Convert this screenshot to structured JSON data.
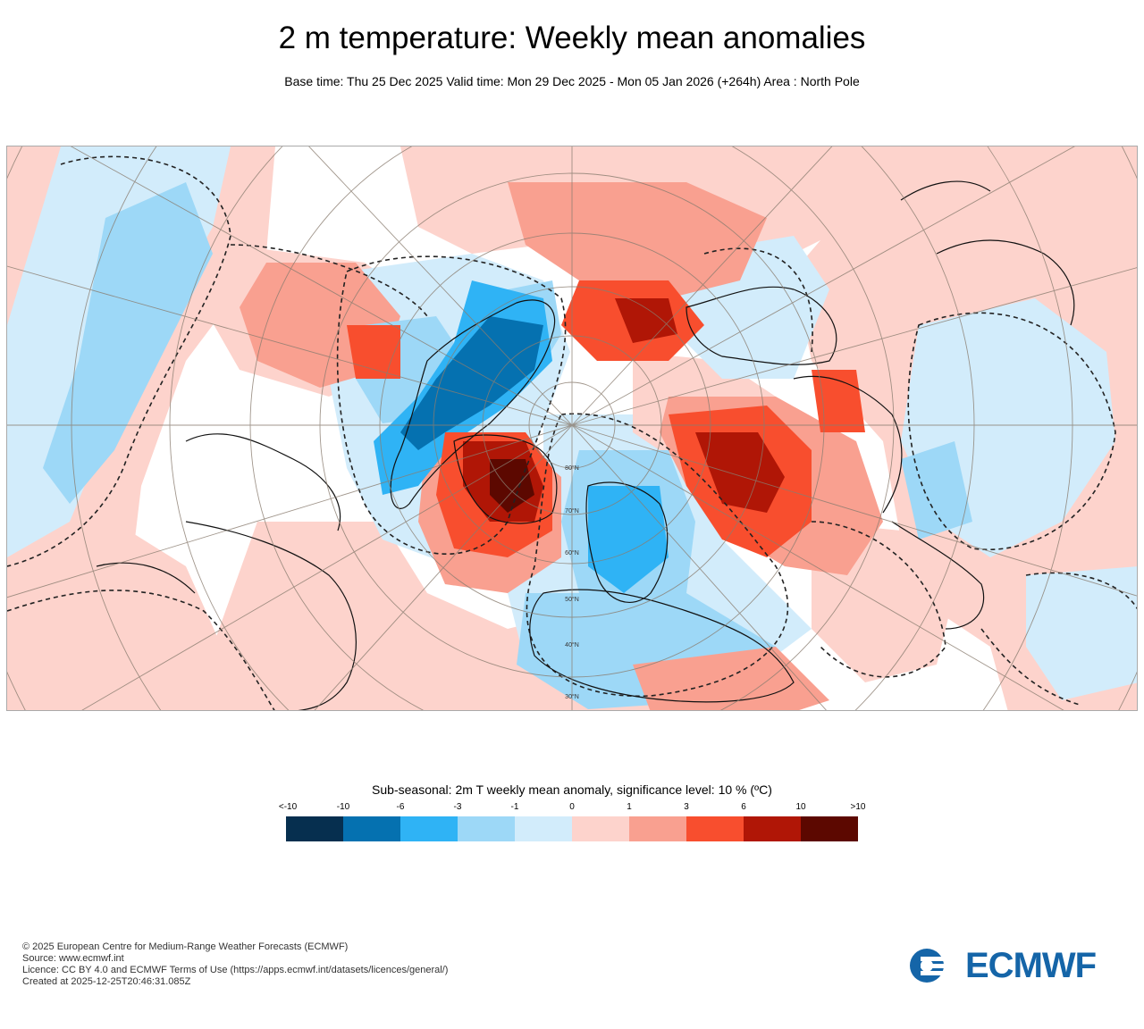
{
  "title": "2 m temperature: Weekly mean anomalies",
  "subtitle": "Base time: Thu 25 Dec 2025 Valid time: Mon 29 Dec 2025 - Mon 05 Jan 2026 (+264h) Area : North Pole",
  "map": {
    "projection": "north-polar-stereographic",
    "latitude_labels": [
      "30°N",
      "40°N",
      "50°N",
      "60°N",
      "70°N",
      "80°N"
    ]
  },
  "legend": {
    "title": "Sub-seasonal: 2m T weekly mean anomaly, significance level: 10 % (ºC)",
    "ticks": [
      "<-10",
      "-10",
      "-6",
      "-3",
      "-1",
      "0",
      "1",
      "3",
      "6",
      "10",
      ">10"
    ],
    "colors": [
      "#062f4f",
      "#0571b0",
      "#2fb3f5",
      "#9dd8f7",
      "#d2ecfb",
      "#fdd3cc",
      "#f9a090",
      "#f84e2e",
      "#b01606",
      "#5c0800"
    ]
  },
  "credits": [
    "© 2025 European Centre for Medium-Range Weather Forecasts (ECMWF)",
    "Source: www.ecmwf.int",
    "Licence: CC BY 4.0 and ECMWF Terms of Use (https://apps.ecmwf.int/datasets/licences/general/)",
    "Created at 2025-12-25T20:46:31.085Z"
  ],
  "logo": {
    "text": "ECMWF",
    "color": "#1565a8"
  }
}
